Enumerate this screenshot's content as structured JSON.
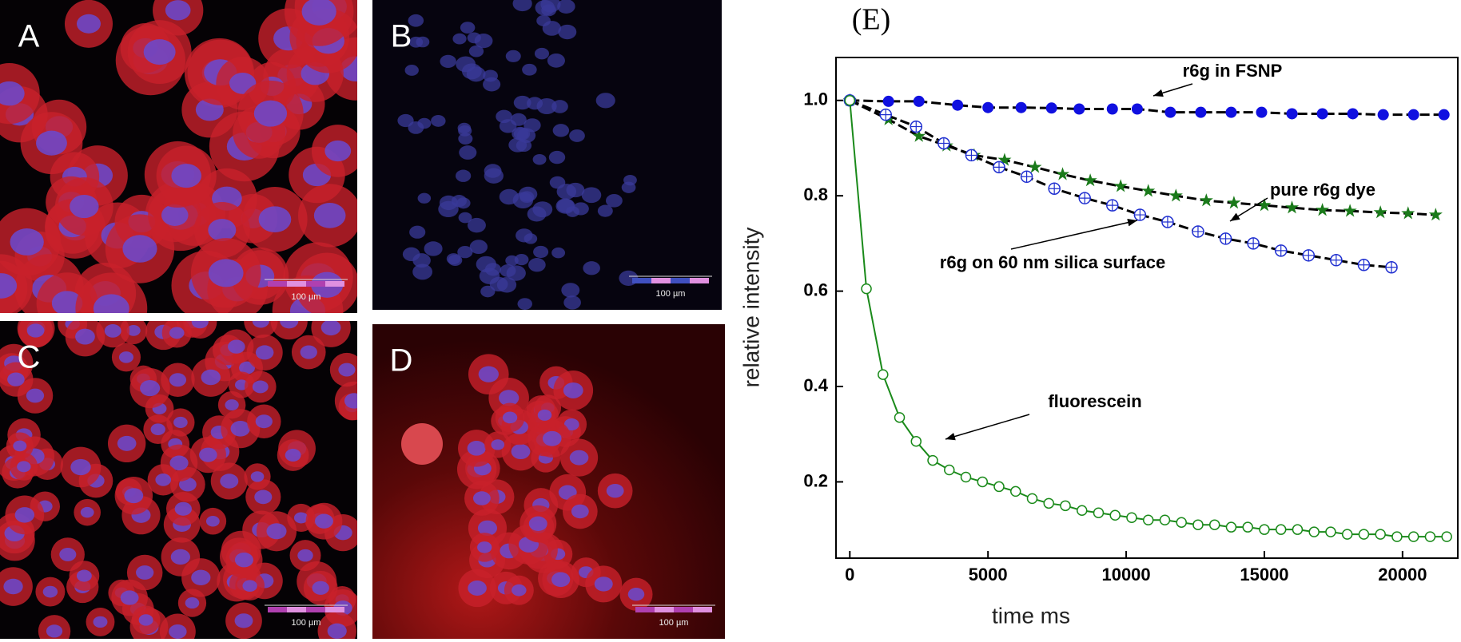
{
  "panels": [
    {
      "label": "A",
      "scale_bar": "100 µm"
    },
    {
      "label": "B",
      "scale_bar": "100 µm"
    },
    {
      "label": "C",
      "scale_bar": "100 µm"
    },
    {
      "label": "D",
      "scale_bar": "100 µm"
    }
  ],
  "chart_data": {
    "type": "scatter",
    "title": "(E)",
    "x_label": "time ms",
    "y_label": "relative intensity",
    "xlim": [
      -500,
      22000
    ],
    "ylim": [
      0.04,
      1.09
    ],
    "xticks": [
      0,
      5000,
      10000,
      15000,
      20000
    ],
    "yticks": [
      0.2,
      0.4,
      0.6,
      0.8,
      {
        "value": 1,
        "label": "1.0"
      }
    ],
    "series": [
      {
        "name": "r6g in FSNP",
        "color": "#1010e0",
        "line_color": "#000000",
        "line_style": "dashed",
        "marker": "filled-circle",
        "x": [
          0,
          1400,
          2500,
          3900,
          5000,
          6200,
          7300,
          8300,
          9500,
          10400,
          11600,
          12700,
          13800,
          14900,
          16000,
          17100,
          18200,
          19300,
          20400,
          21500
        ],
        "values": [
          1.0,
          0.998,
          0.998,
          0.99,
          0.985,
          0.985,
          0.984,
          0.982,
          0.982,
          0.982,
          0.975,
          0.975,
          0.975,
          0.975,
          0.972,
          0.972,
          0.972,
          0.97,
          0.97,
          0.97
        ]
      },
      {
        "name": "pure r6g dye",
        "color": "#1a7a1a",
        "line_color": "#000000",
        "line_style": "dashed",
        "marker": "star",
        "x": [
          0,
          1400,
          2500,
          3500,
          4500,
          5600,
          6700,
          7700,
          8700,
          9800,
          10800,
          11800,
          12900,
          13900,
          15000,
          16000,
          17100,
          18100,
          19200,
          20200,
          21200
        ],
        "values": [
          1.0,
          0.96,
          0.925,
          0.905,
          0.885,
          0.875,
          0.86,
          0.845,
          0.832,
          0.82,
          0.81,
          0.8,
          0.79,
          0.785,
          0.78,
          0.775,
          0.77,
          0.768,
          0.765,
          0.763,
          0.76
        ]
      },
      {
        "name": "r6g on 60 nm silica surface",
        "color": "#2030d0",
        "line_color": "#000000",
        "line_style": "dashed",
        "marker": "crossed-circle",
        "x": [
          0,
          1300,
          2400,
          3400,
          4400,
          5400,
          6400,
          7400,
          8500,
          9500,
          10500,
          11500,
          12600,
          13600,
          14600,
          15600,
          16600,
          17600,
          18600,
          19600
        ],
        "values": [
          1.0,
          0.97,
          0.945,
          0.91,
          0.885,
          0.86,
          0.84,
          0.815,
          0.795,
          0.78,
          0.76,
          0.745,
          0.725,
          0.71,
          0.7,
          0.685,
          0.675,
          0.665,
          0.655,
          0.65
        ]
      },
      {
        "name": "fluorescein",
        "color": "#1a8a1a",
        "line_color": "#1a8a1a",
        "line_style": "solid",
        "marker": "open-circle",
        "x": [
          0,
          600,
          1200,
          1800,
          2400,
          3000,
          3600,
          4200,
          4800,
          5400,
          6000,
          6600,
          7200,
          7800,
          8400,
          9000,
          9600,
          10200,
          10800,
          11400,
          12000,
          12600,
          13200,
          13800,
          14400,
          15000,
          15600,
          16200,
          16800,
          17400,
          18000,
          18600,
          19200,
          19800,
          20400,
          21000,
          21600
        ],
        "values": [
          1.0,
          0.605,
          0.425,
          0.335,
          0.285,
          0.245,
          0.225,
          0.21,
          0.2,
          0.19,
          0.18,
          0.165,
          0.155,
          0.15,
          0.14,
          0.135,
          0.13,
          0.125,
          0.12,
          0.12,
          0.115,
          0.11,
          0.11,
          0.105,
          0.105,
          0.1,
          0.1,
          0.1,
          0.095,
          0.095,
          0.09,
          0.09,
          0.09,
          0.085,
          0.085,
          0.085,
          0.085
        ]
      }
    ]
  }
}
